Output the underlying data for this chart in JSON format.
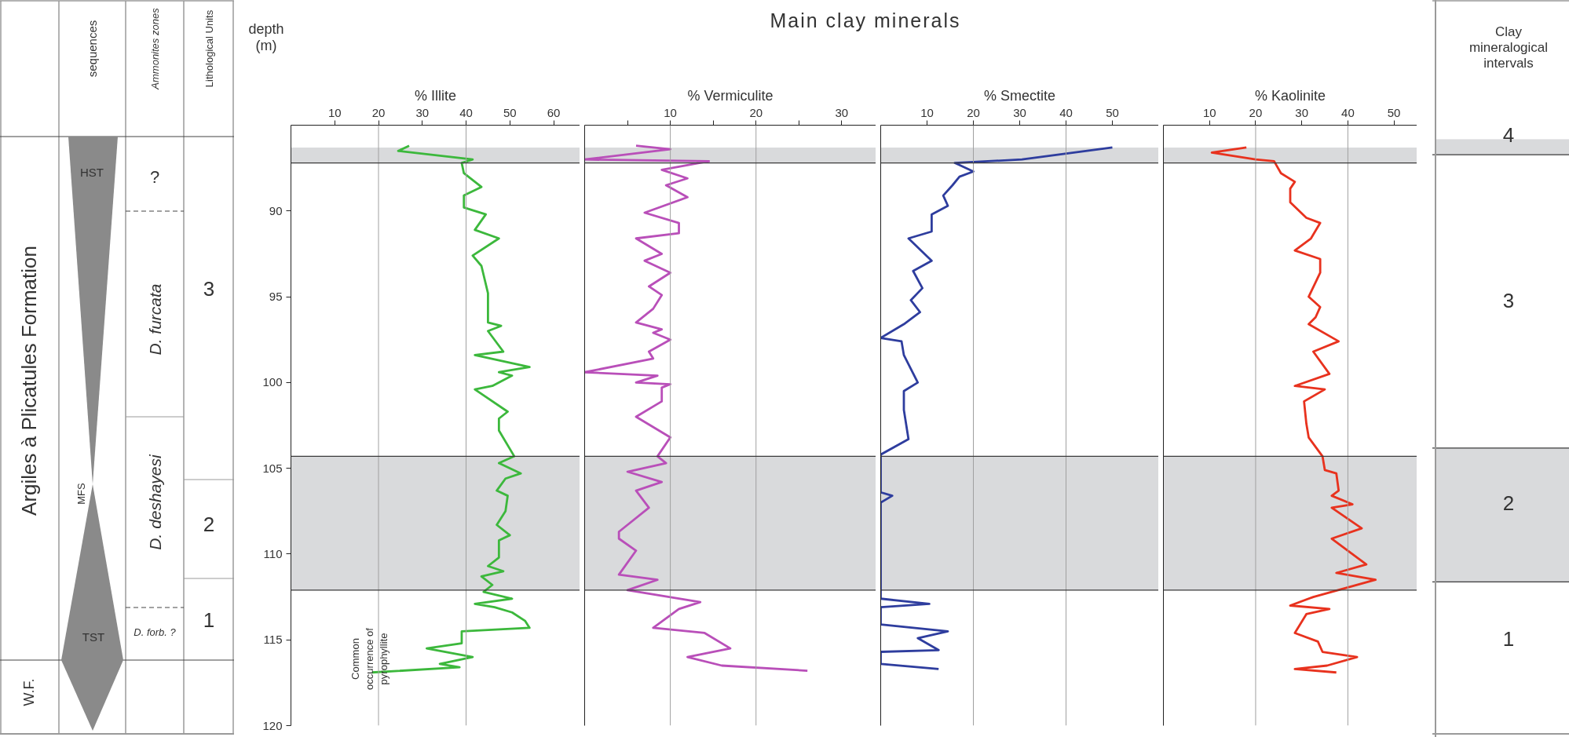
{
  "chart_data": [
    {
      "type": "other",
      "annotations": [
        "Argiles à Plicatules Formation",
        "W.F.",
        "sequences",
        "HST",
        "MFS",
        "TST",
        "Ammonites zones",
        "?",
        "D. furcata",
        "D. deshayesi",
        "D. forb. ?",
        "Lithological Units",
        "3",
        "2",
        "1"
      ]
    },
    {
      "type": "line",
      "orientation": "horizontal",
      "xlabel": "% Illite",
      "ylabel": "depth (m)",
      "annotations": [
        "Common occurrence of pyrophyllite"
      ],
      "xlim": [
        0,
        66
      ],
      "xticks": [
        10,
        20,
        30,
        40,
        50,
        60
      ],
      "ylim": [
        120,
        85
      ],
      "yticks": [
        90,
        95,
        100,
        105,
        110,
        115,
        120
      ],
      "x": [
        86.2,
        86.5,
        87.0,
        87.2,
        87.8,
        88.6,
        89.1,
        89.8,
        90.2,
        91.1,
        91.6,
        92.6,
        93.2,
        94.8,
        96.5,
        96.7,
        97.0,
        98.2,
        98.4,
        99.1,
        99.4,
        99.6,
        100.2,
        100.4,
        101.7,
        102.1,
        102.8,
        104.3,
        104.7,
        105.3,
        105.6,
        106.3,
        106.6,
        107.5,
        108.3,
        108.9,
        109.2,
        110.2,
        110.7,
        111.0,
        111.3,
        111.8,
        112.2,
        112.6,
        112.9,
        113.1,
        113.4,
        113.9,
        114.3,
        114.5,
        115.2,
        115.5,
        116.0,
        116.4,
        116.6,
        116.9
      ],
      "series": [
        {
          "color": "#3cb83c",
          "values": [
            27,
            24.5,
            41.5,
            39,
            39.5,
            43.5,
            39.5,
            39.5,
            44.5,
            42,
            47.5,
            41.5,
            43.5,
            45,
            45,
            48,
            45,
            48.5,
            42,
            54.5,
            47.5,
            50.5,
            46,
            42,
            49.5,
            47.5,
            47.5,
            51,
            47.5,
            52.5,
            49,
            47,
            49.5,
            49,
            47,
            50,
            47.5,
            47.5,
            45,
            48.5,
            43.5,
            46,
            44,
            50.5,
            42,
            46.5,
            50.5,
            53.5,
            54.5,
            39,
            39,
            31,
            41.5,
            34,
            38.5,
            18.5
          ]
        }
      ],
      "bands": [
        {
          "axis": "y",
          "from": 86.3,
          "to": 87.2,
          "color": "#d9dadc"
        },
        {
          "axis": "y",
          "from": 104.3,
          "to": 112.1,
          "color": "#d9dadc"
        }
      ],
      "ref_lines": [
        {
          "axis": "x",
          "value": 20,
          "color": "#a0a0a0"
        },
        {
          "axis": "x",
          "value": 40,
          "color": "#a0a0a0"
        },
        {
          "axis": "y",
          "value": 87.2,
          "color": "#3a3a3a"
        },
        {
          "axis": "y",
          "value": 104.3,
          "color": "#3a3a3a"
        },
        {
          "axis": "y",
          "value": 112.1,
          "color": "#3a3a3a"
        }
      ]
    },
    {
      "type": "line",
      "orientation": "horizontal",
      "title": "Main clay minerals",
      "xlabel": "% Vermiculite",
      "tick_labels": "x",
      "xlim": [
        0,
        34
      ],
      "xticks": [
        {
          "value": 5,
          "label": null
        },
        10,
        {
          "value": 15,
          "label": null
        },
        20,
        {
          "value": 25,
          "label": null
        },
        30
      ],
      "ylim": [
        120,
        85
      ],
      "x": [
        86.2,
        86.4,
        87.0,
        87.1,
        87.6,
        88.1,
        88.5,
        89.2,
        90.1,
        90.7,
        91.3,
        91.6,
        92.5,
        92.9,
        93.6,
        94.4,
        94.9,
        95.7,
        96.5,
        96.9,
        97.1,
        97.5,
        98.2,
        98.6,
        99.4,
        99.6,
        100.0,
        100.1,
        100.3,
        101.1,
        102.0,
        103.2,
        104.3,
        104.7,
        105.2,
        105.8,
        106.3,
        107.3,
        108.3,
        108.7,
        109.1,
        109.8,
        111.2,
        111.5,
        112.1,
        112.8,
        113.2,
        114.3,
        114.6,
        115.5,
        116.0,
        116.5,
        116.8
      ],
      "series": [
        {
          "color": "#b94fb9",
          "values": [
            6,
            10,
            0,
            14.5,
            9,
            12,
            9.5,
            12,
            7,
            11,
            11,
            6,
            9,
            7,
            10,
            7.5,
            9,
            8,
            6,
            9,
            8,
            10,
            7.5,
            8,
            0,
            8.5,
            6,
            10,
            9,
            9,
            6,
            10,
            8.5,
            9.5,
            5,
            9,
            6,
            7.5,
            5,
            4,
            4,
            6,
            4,
            8.5,
            5,
            13.5,
            11,
            8,
            14,
            17,
            12,
            16,
            26
          ]
        }
      ],
      "bands": [
        {
          "axis": "y",
          "from": 86.3,
          "to": 87.2,
          "color": "#d9dadc"
        },
        {
          "axis": "y",
          "from": 104.3,
          "to": 112.1,
          "color": "#d9dadc"
        }
      ],
      "ref_lines": [
        {
          "axis": "x",
          "value": 10,
          "color": "#a0a0a0"
        },
        {
          "axis": "x",
          "value": 20,
          "color": "#a0a0a0"
        },
        {
          "axis": "y",
          "value": 87.2,
          "color": "#3a3a3a"
        },
        {
          "axis": "y",
          "value": 104.3,
          "color": "#3a3a3a"
        },
        {
          "axis": "y",
          "value": 112.1,
          "color": "#3a3a3a"
        }
      ]
    },
    {
      "type": "line",
      "orientation": "horizontal",
      "xlabel": "% Smectite",
      "tick_labels": "x",
      "xlim": [
        0,
        60
      ],
      "xticks": [
        10,
        20,
        30,
        40,
        50
      ],
      "ylim": [
        120,
        85
      ],
      "x": [
        86.3,
        87.0,
        87.2,
        87.7,
        88.0,
        88.5,
        89.1,
        89.7,
        90.2,
        91.2,
        91.6,
        92.9,
        93.5,
        94.5,
        95.2,
        95.9,
        96.6,
        97.4,
        97.6,
        98.4,
        100.0,
        100.5,
        101.6,
        103.3,
        104.2,
        106.4,
        106.6,
        107.0,
        112.6,
        112.9,
        113.1,
        114.1,
        114.5,
        114.9,
        115.6,
        115.7,
        116.4,
        116.7
      ],
      "series": [
        {
          "color": "#2e3d9e",
          "values": [
            50,
            30.5,
            16,
            20,
            17,
            15.5,
            13.5,
            14.5,
            11,
            11,
            6,
            11,
            7,
            9,
            6.5,
            8.5,
            5,
            0,
            4.5,
            5,
            8,
            5,
            5,
            6,
            0,
            0,
            2.5,
            0,
            0,
            10.5,
            0,
            0,
            14.5,
            8,
            12.5,
            0,
            0,
            12.5
          ]
        }
      ],
      "bands": [
        {
          "axis": "y",
          "from": 86.3,
          "to": 87.2,
          "color": "#d9dadc"
        },
        {
          "axis": "y",
          "from": 104.3,
          "to": 112.1,
          "color": "#d9dadc"
        }
      ],
      "ref_lines": [
        {
          "axis": "x",
          "value": 20,
          "color": "#a0a0a0"
        },
        {
          "axis": "x",
          "value": 40,
          "color": "#a0a0a0"
        },
        {
          "axis": "y",
          "value": 87.2,
          "color": "#3a3a3a"
        },
        {
          "axis": "y",
          "value": 104.3,
          "color": "#3a3a3a"
        },
        {
          "axis": "y",
          "value": 112.1,
          "color": "#3a3a3a"
        }
      ]
    },
    {
      "type": "line",
      "orientation": "horizontal",
      "xlabel": "% Kaolinite",
      "tick_labels": "x",
      "xlim": [
        0,
        55
      ],
      "xticks": [
        10,
        20,
        30,
        40,
        50
      ],
      "ylim": [
        120,
        85
      ],
      "x": [
        86.3,
        86.6,
        87.0,
        87.1,
        87.8,
        88.3,
        88.7,
        89.5,
        90.4,
        90.7,
        91.6,
        92.3,
        92.8,
        93.6,
        95.0,
        95.6,
        96.2,
        96.6,
        97.6,
        98.2,
        99.5,
        100.2,
        100.4,
        101.1,
        102.4,
        103.2,
        104.3,
        105.1,
        105.3,
        106.3,
        106.6,
        107.1,
        107.3,
        108.5,
        109.1,
        110.6,
        111.1,
        111.5,
        112.5,
        113.0,
        113.2,
        113.5,
        114.6,
        115.1,
        115.7,
        116.0,
        116.5,
        116.7,
        116.9
      ],
      "series": [
        {
          "color": "#e8321e",
          "values": [
            18,
            10.5,
            20,
            24,
            25.5,
            28.5,
            27.5,
            27.5,
            31,
            34,
            32,
            28.5,
            34,
            34,
            31.5,
            34,
            33,
            31.5,
            38,
            32.5,
            36,
            28.5,
            35,
            30.5,
            31,
            31.5,
            34.5,
            35,
            37.5,
            38,
            36.5,
            41,
            36.5,
            43,
            36.5,
            44,
            37.5,
            46,
            32.5,
            27.5,
            36,
            31,
            28.5,
            33.5,
            34.5,
            42,
            35.5,
            28.5,
            37.5
          ]
        }
      ],
      "bands": [
        {
          "axis": "y",
          "from": 86.3,
          "to": 87.2,
          "color": "#d9dadc"
        },
        {
          "axis": "y",
          "from": 104.3,
          "to": 112.1,
          "color": "#d9dadc"
        }
      ],
      "ref_lines": [
        {
          "axis": "x",
          "value": 20,
          "color": "#a0a0a0"
        },
        {
          "axis": "x",
          "value": 40,
          "color": "#a0a0a0"
        },
        {
          "axis": "y",
          "value": 87.2,
          "color": "#3a3a3a"
        },
        {
          "axis": "y",
          "value": 104.3,
          "color": "#3a3a3a"
        },
        {
          "axis": "y",
          "value": 112.1,
          "color": "#3a3a3a"
        }
      ]
    },
    {
      "type": "other",
      "annotations": [
        "Clay mineralogical intervals",
        "4",
        "3",
        "2",
        "1"
      ]
    }
  ]
}
